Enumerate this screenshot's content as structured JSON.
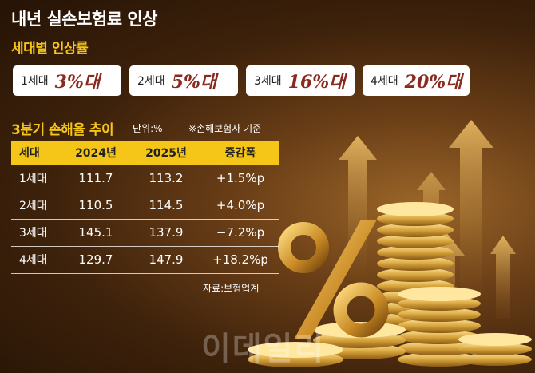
{
  "header": {
    "title": "내년 실손보험료 인상",
    "subtitle": "세대별 인상률"
  },
  "increase_rates": [
    {
      "generation": "1세대",
      "rate": "3%대"
    },
    {
      "generation": "2세대",
      "rate": "5%대"
    },
    {
      "generation": "3세대",
      "rate": "16%대"
    },
    {
      "generation": "4세대",
      "rate": "20%대"
    }
  ],
  "loss_section": {
    "title": "3분기 손해율 추이",
    "unit": "단위:%",
    "note": "※손해보험사 기준",
    "source": "자료:보험업계"
  },
  "chart_data": {
    "type": "table",
    "title": "3분기 손해율 추이",
    "columns": [
      "세대",
      "2024년",
      "2025년",
      "증감폭"
    ],
    "rows": [
      [
        "1세대",
        "111.7",
        "113.2",
        "+1.5%p"
      ],
      [
        "2세대",
        "110.5",
        "114.5",
        "+4.0%p"
      ],
      [
        "3세대",
        "145.1",
        "137.9",
        "−7.2%p"
      ],
      [
        "4세대",
        "129.7",
        "147.9",
        "+18.2%p"
      ]
    ]
  },
  "watermark": "이데일리",
  "colors": {
    "accent": "#f5c518",
    "rate_text": "#8a2a1e",
    "background": "#4a2a0e"
  }
}
